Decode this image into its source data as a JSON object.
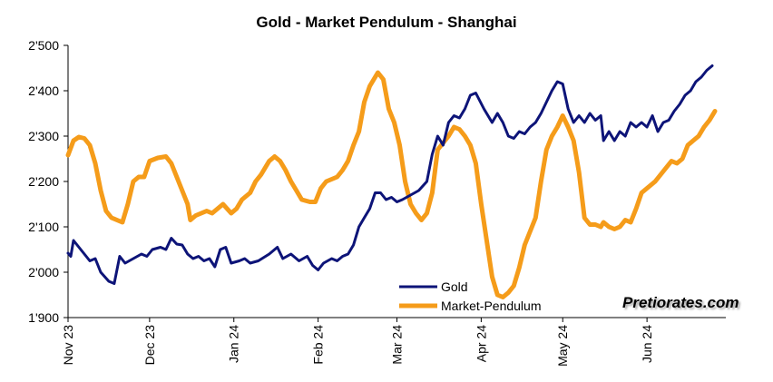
{
  "colors": {
    "gold": "#0d1478",
    "pendulum": "#f59c1a",
    "axis": "#000000"
  },
  "watermark": "Pretiorates.com",
  "chart_data": {
    "type": "line",
    "title": "Gold - Market Pendulum - Shanghai",
    "xlabel": "",
    "ylabel": "",
    "ylim": [
      1900,
      2500
    ],
    "yticks": [
      1900,
      2000,
      2100,
      2200,
      2300,
      2400,
      2500
    ],
    "ytick_labels": [
      "1'900",
      "2'000",
      "2'100",
      "2'200",
      "2'300",
      "2'400",
      "2'500"
    ],
    "x_range": [
      "2023-11-01",
      "2024-06-30"
    ],
    "xticks": [
      "2023-11-01",
      "2023-12-01",
      "2024-01-01",
      "2024-02-01",
      "2024-03-01",
      "2024-04-01",
      "2024-05-01",
      "2024-06-01"
    ],
    "xtick_labels": [
      "Nov 23",
      "Dec 23",
      "Jan 24",
      "Feb 24",
      "Mar 24",
      "Apr 24",
      "May 24",
      "Jun 24"
    ],
    "grid": false,
    "legend": "bottom-center",
    "series": [
      {
        "name": "Gold",
        "color": "#0d1478",
        "points": [
          [
            "2023-11-01",
            2042
          ],
          [
            "2023-11-02",
            2035
          ],
          [
            "2023-11-03",
            2070
          ],
          [
            "2023-11-05",
            2055
          ],
          [
            "2023-11-07",
            2040
          ],
          [
            "2023-11-09",
            2025
          ],
          [
            "2023-11-11",
            2030
          ],
          [
            "2023-11-13",
            2000
          ],
          [
            "2023-11-16",
            1980
          ],
          [
            "2023-11-18",
            1975
          ],
          [
            "2023-11-20",
            2035
          ],
          [
            "2023-11-22",
            2020
          ],
          [
            "2023-11-25",
            2030
          ],
          [
            "2023-11-28",
            2040
          ],
          [
            "2023-11-30",
            2035
          ],
          [
            "2023-12-02",
            2050
          ],
          [
            "2023-12-05",
            2055
          ],
          [
            "2023-12-07",
            2050
          ],
          [
            "2023-12-09",
            2075
          ],
          [
            "2023-12-11",
            2062
          ],
          [
            "2023-12-13",
            2060
          ],
          [
            "2023-12-15",
            2040
          ],
          [
            "2023-12-17",
            2030
          ],
          [
            "2023-12-19",
            2035
          ],
          [
            "2023-12-21",
            2025
          ],
          [
            "2023-12-23",
            2030
          ],
          [
            "2023-12-25",
            2012
          ],
          [
            "2023-12-27",
            2050
          ],
          [
            "2023-12-29",
            2055
          ],
          [
            "2023-12-31",
            2020
          ],
          [
            "2024-01-03",
            2025
          ],
          [
            "2024-01-05",
            2030
          ],
          [
            "2024-01-07",
            2020
          ],
          [
            "2024-01-10",
            2025
          ],
          [
            "2024-01-14",
            2040
          ],
          [
            "2024-01-17",
            2055
          ],
          [
            "2024-01-19",
            2030
          ],
          [
            "2024-01-22",
            2040
          ],
          [
            "2024-01-25",
            2025
          ],
          [
            "2024-01-28",
            2035
          ],
          [
            "2024-01-30",
            2015
          ],
          [
            "2024-02-01",
            2005
          ],
          [
            "2024-02-03",
            2020
          ],
          [
            "2024-02-06",
            2030
          ],
          [
            "2024-02-08",
            2025
          ],
          [
            "2024-02-10",
            2035
          ],
          [
            "2024-02-12",
            2040
          ],
          [
            "2024-02-14",
            2060
          ],
          [
            "2024-02-16",
            2100
          ],
          [
            "2024-02-18",
            2120
          ],
          [
            "2024-02-20",
            2140
          ],
          [
            "2024-02-22",
            2175
          ],
          [
            "2024-02-24",
            2175
          ],
          [
            "2024-02-26",
            2160
          ],
          [
            "2024-02-28",
            2165
          ],
          [
            "2024-03-01",
            2155
          ],
          [
            "2024-03-03",
            2160
          ],
          [
            "2024-03-06",
            2170
          ],
          [
            "2024-03-09",
            2180
          ],
          [
            "2024-03-12",
            2200
          ],
          [
            "2024-03-14",
            2260
          ],
          [
            "2024-03-16",
            2300
          ],
          [
            "2024-03-18",
            2280
          ],
          [
            "2024-03-20",
            2330
          ],
          [
            "2024-03-22",
            2345
          ],
          [
            "2024-03-24",
            2340
          ],
          [
            "2024-03-26",
            2360
          ],
          [
            "2024-03-28",
            2390
          ],
          [
            "2024-03-30",
            2395
          ],
          [
            "2024-04-02",
            2360
          ],
          [
            "2024-04-05",
            2330
          ],
          [
            "2024-04-07",
            2350
          ],
          [
            "2024-04-09",
            2330
          ],
          [
            "2024-04-11",
            2300
          ],
          [
            "2024-04-13",
            2295
          ],
          [
            "2024-04-15",
            2310
          ],
          [
            "2024-04-17",
            2305
          ],
          [
            "2024-04-19",
            2320
          ],
          [
            "2024-04-21",
            2330
          ],
          [
            "2024-04-23",
            2350
          ],
          [
            "2024-04-25",
            2375
          ],
          [
            "2024-04-27",
            2400
          ],
          [
            "2024-04-29",
            2420
          ],
          [
            "2024-05-01",
            2415
          ],
          [
            "2024-05-03",
            2360
          ],
          [
            "2024-05-05",
            2330
          ],
          [
            "2024-05-07",
            2345
          ],
          [
            "2024-05-09",
            2330
          ],
          [
            "2024-05-11",
            2350
          ],
          [
            "2024-05-13",
            2335
          ],
          [
            "2024-05-15",
            2345
          ],
          [
            "2024-05-16",
            2290
          ],
          [
            "2024-05-18",
            2310
          ],
          [
            "2024-05-20",
            2290
          ],
          [
            "2024-05-22",
            2310
          ],
          [
            "2024-05-24",
            2300
          ],
          [
            "2024-05-26",
            2330
          ],
          [
            "2024-05-28",
            2320
          ],
          [
            "2024-05-30",
            2330
          ],
          [
            "2024-06-01",
            2320
          ],
          [
            "2024-06-03",
            2345
          ],
          [
            "2024-06-05",
            2310
          ],
          [
            "2024-06-07",
            2330
          ],
          [
            "2024-06-09",
            2335
          ],
          [
            "2024-06-11",
            2355
          ],
          [
            "2024-06-13",
            2370
          ],
          [
            "2024-06-15",
            2390
          ],
          [
            "2024-06-17",
            2400
          ],
          [
            "2024-06-19",
            2420
          ],
          [
            "2024-06-21",
            2430
          ],
          [
            "2024-06-23",
            2445
          ],
          [
            "2024-06-25",
            2455
          ]
        ]
      },
      {
        "name": "Market-Pendulum",
        "color": "#f59c1a",
        "points": [
          [
            "2023-11-01",
            2258
          ],
          [
            "2023-11-03",
            2290
          ],
          [
            "2023-11-05",
            2298
          ],
          [
            "2023-11-07",
            2295
          ],
          [
            "2023-11-09",
            2280
          ],
          [
            "2023-11-11",
            2240
          ],
          [
            "2023-11-13",
            2180
          ],
          [
            "2023-11-15",
            2135
          ],
          [
            "2023-11-17",
            2120
          ],
          [
            "2023-11-19",
            2115
          ],
          [
            "2023-11-21",
            2110
          ],
          [
            "2023-11-23",
            2150
          ],
          [
            "2023-11-25",
            2200
          ],
          [
            "2023-11-27",
            2210
          ],
          [
            "2023-11-29",
            2210
          ],
          [
            "2023-12-01",
            2245
          ],
          [
            "2023-12-04",
            2252
          ],
          [
            "2023-12-07",
            2255
          ],
          [
            "2023-12-09",
            2240
          ],
          [
            "2023-12-11",
            2210
          ],
          [
            "2023-12-13",
            2180
          ],
          [
            "2023-12-15",
            2150
          ],
          [
            "2023-12-16",
            2115
          ],
          [
            "2023-12-18",
            2125
          ],
          [
            "2023-12-20",
            2130
          ],
          [
            "2023-12-22",
            2135
          ],
          [
            "2023-12-24",
            2130
          ],
          [
            "2023-12-26",
            2140
          ],
          [
            "2023-12-28",
            2150
          ],
          [
            "2023-12-31",
            2130
          ],
          [
            "2024-01-02",
            2140
          ],
          [
            "2024-01-04",
            2160
          ],
          [
            "2024-01-07",
            2175
          ],
          [
            "2024-01-09",
            2200
          ],
          [
            "2024-01-11",
            2215
          ],
          [
            "2024-01-14",
            2245
          ],
          [
            "2024-01-16",
            2255
          ],
          [
            "2024-01-18",
            2245
          ],
          [
            "2024-01-20",
            2225
          ],
          [
            "2024-01-22",
            2200
          ],
          [
            "2024-01-24",
            2180
          ],
          [
            "2024-01-26",
            2160
          ],
          [
            "2024-01-29",
            2155
          ],
          [
            "2024-01-31",
            2155
          ],
          [
            "2024-02-02",
            2185
          ],
          [
            "2024-02-04",
            2200
          ],
          [
            "2024-02-06",
            2205
          ],
          [
            "2024-02-08",
            2210
          ],
          [
            "2024-02-10",
            2225
          ],
          [
            "2024-02-12",
            2245
          ],
          [
            "2024-02-14",
            2280
          ],
          [
            "2024-02-16",
            2310
          ],
          [
            "2024-02-18",
            2375
          ],
          [
            "2024-02-20",
            2410
          ],
          [
            "2024-02-22",
            2430
          ],
          [
            "2024-02-23",
            2440
          ],
          [
            "2024-02-25",
            2425
          ],
          [
            "2024-02-27",
            2360
          ],
          [
            "2024-02-29",
            2330
          ],
          [
            "2024-03-02",
            2280
          ],
          [
            "2024-03-04",
            2200
          ],
          [
            "2024-03-06",
            2150
          ],
          [
            "2024-03-08",
            2130
          ],
          [
            "2024-03-10",
            2115
          ],
          [
            "2024-03-12",
            2130
          ],
          [
            "2024-03-14",
            2175
          ],
          [
            "2024-03-16",
            2270
          ],
          [
            "2024-03-18",
            2285
          ],
          [
            "2024-03-20",
            2300
          ],
          [
            "2024-03-22",
            2320
          ],
          [
            "2024-03-24",
            2315
          ],
          [
            "2024-03-26",
            2300
          ],
          [
            "2024-03-28",
            2280
          ],
          [
            "2024-03-30",
            2240
          ],
          [
            "2024-04-01",
            2150
          ],
          [
            "2024-04-03",
            2070
          ],
          [
            "2024-04-05",
            1990
          ],
          [
            "2024-04-07",
            1950
          ],
          [
            "2024-04-09",
            1945
          ],
          [
            "2024-04-11",
            1955
          ],
          [
            "2024-04-13",
            1970
          ],
          [
            "2024-04-15",
            2010
          ],
          [
            "2024-04-17",
            2060
          ],
          [
            "2024-04-19",
            2090
          ],
          [
            "2024-04-21",
            2120
          ],
          [
            "2024-04-23",
            2200
          ],
          [
            "2024-04-25",
            2270
          ],
          [
            "2024-04-27",
            2300
          ],
          [
            "2024-04-29",
            2320
          ],
          [
            "2024-05-01",
            2345
          ],
          [
            "2024-05-03",
            2320
          ],
          [
            "2024-05-05",
            2290
          ],
          [
            "2024-05-07",
            2220
          ],
          [
            "2024-05-09",
            2120
          ],
          [
            "2024-05-11",
            2105
          ],
          [
            "2024-05-13",
            2105
          ],
          [
            "2024-05-15",
            2100
          ],
          [
            "2024-05-16",
            2110
          ],
          [
            "2024-05-18",
            2100
          ],
          [
            "2024-05-20",
            2095
          ],
          [
            "2024-05-22",
            2100
          ],
          [
            "2024-05-24",
            2115
          ],
          [
            "2024-05-26",
            2110
          ],
          [
            "2024-05-28",
            2140
          ],
          [
            "2024-05-30",
            2175
          ],
          [
            "2024-06-01",
            2185
          ],
          [
            "2024-06-04",
            2200
          ],
          [
            "2024-06-06",
            2215
          ],
          [
            "2024-06-08",
            2230
          ],
          [
            "2024-06-10",
            2245
          ],
          [
            "2024-06-12",
            2240
          ],
          [
            "2024-06-14",
            2250
          ],
          [
            "2024-06-16",
            2280
          ],
          [
            "2024-06-18",
            2290
          ],
          [
            "2024-06-20",
            2300
          ],
          [
            "2024-06-22",
            2320
          ],
          [
            "2024-06-24",
            2335
          ],
          [
            "2024-06-26",
            2355
          ]
        ]
      }
    ]
  }
}
